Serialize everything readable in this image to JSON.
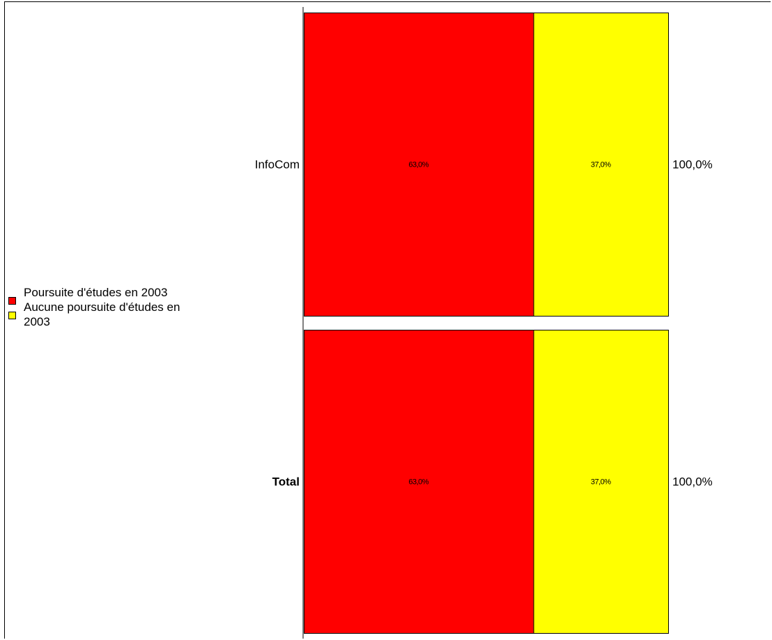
{
  "chart_data": {
    "type": "bar",
    "orientation": "horizontal",
    "stacked": true,
    "percent_stacked": true,
    "categories": [
      "InfoCom",
      "Total"
    ],
    "series": [
      {
        "name": "Poursuite d'études en 2003",
        "color": "#ff0000",
        "values": [
          63.0,
          63.0
        ],
        "labels": [
          "63,0%",
          "63,0%"
        ]
      },
      {
        "name": "Aucune poursuite d'études en 2003",
        "color": "#ffff00",
        "values": [
          37.0,
          37.0
        ],
        "labels": [
          "37,0%",
          "37,0%"
        ]
      }
    ],
    "totals": [
      "100,0%",
      "100,0%"
    ],
    "category_bold": [
      false,
      true
    ],
    "xlim": [
      0,
      100
    ],
    "legend_position": "left",
    "grid": false
  },
  "legend": {
    "items": [
      {
        "label": "Poursuite d'études en 2003",
        "color": "#ff0000"
      },
      {
        "label": "Aucune poursuite d'études en 2003",
        "color": "#ffff00"
      }
    ]
  }
}
